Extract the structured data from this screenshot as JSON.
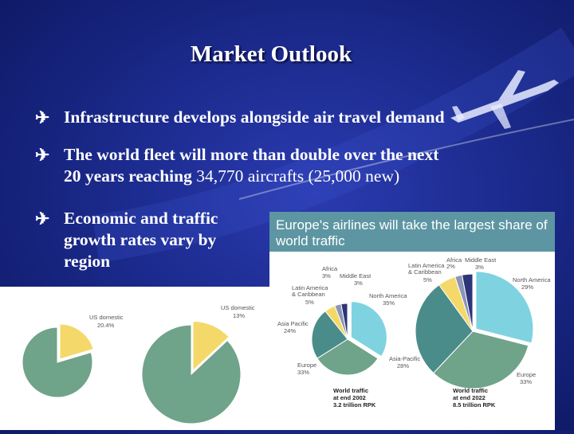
{
  "slide": {
    "title": "Market Outlook",
    "bullet_glyph": "✈",
    "bullets": [
      {
        "text": "Infrastructure develops alongside air travel demand"
      },
      {
        "line1": "The world fleet will more than double over the next",
        "line2_bold": "20 years reaching ",
        "line2_plain": "34,770 aircrafts (25,000 new)"
      },
      {
        "line1": "Economic and traffic",
        "line2": "growth rates vary by",
        "line3": "region"
      }
    ]
  },
  "colors": {
    "green": "#6fa38a",
    "light_blue": "#7fd3e0",
    "yellow": "#f4d96a",
    "teal": "#4a8c8a",
    "gray_blue": "#8a95b8",
    "navy": "#2d3578"
  },
  "chart_data": [
    {
      "type": "pie",
      "title": "",
      "slices": [
        {
          "label": "US domestic",
          "value": 20.4,
          "value_label": "20.4%"
        },
        {
          "label": "",
          "value": 79.6
        }
      ]
    },
    {
      "type": "pie",
      "title": "",
      "slices": [
        {
          "label": "US domestic",
          "value": 13,
          "value_label": "13%"
        },
        {
          "label": "",
          "value": 87
        }
      ]
    },
    {
      "type": "pie",
      "title": "Europe's airlines will take the largest share of world traffic",
      "footer": {
        "line1": "World traffic",
        "line2": "at end 2002",
        "line3": "3.2 trillion RPK"
      },
      "slices": [
        {
          "label": "North America",
          "value": 35,
          "value_label": "35%"
        },
        {
          "label": "Europe",
          "value": 33,
          "value_label": "33%"
        },
        {
          "label": "Asia Pacific",
          "value": 24,
          "value_label": "24%"
        },
        {
          "label": "Latin America & Caribbean",
          "value": 5,
          "value_label": "5%"
        },
        {
          "label": "Africa",
          "value": 3,
          "value_label": "3%"
        },
        {
          "label": "Middle East",
          "value": 3,
          "value_label": "3%"
        }
      ]
    },
    {
      "type": "pie",
      "title": "",
      "footer": {
        "line1": "World traffic",
        "line2": "at end 2022",
        "line3": "8.5 trillion RPK"
      },
      "slices": [
        {
          "label": "North America",
          "value": 29,
          "value_label": "29%"
        },
        {
          "label": "Europe",
          "value": 33,
          "value_label": "33%"
        },
        {
          "label": "Asia-Pacific",
          "value": 28,
          "value_label": "28%"
        },
        {
          "label": "Latin America & Caribbean",
          "value": 5,
          "value_label": "5%"
        },
        {
          "label": "Africa",
          "value": 2,
          "value_label": "2%"
        },
        {
          "label": "Middle East",
          "value": 3,
          "value_label": "3%"
        }
      ]
    }
  ]
}
